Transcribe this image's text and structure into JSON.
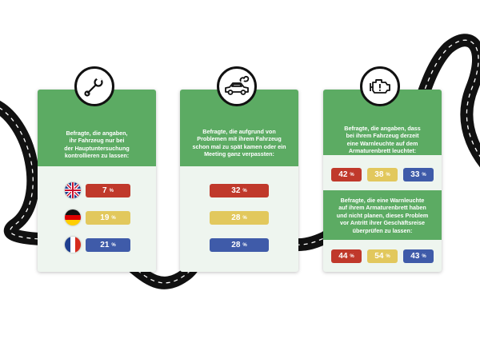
{
  "colors": {
    "green": "#5cab63",
    "red": "#c0392b",
    "yellow": "#e2c85d",
    "blue": "#3f5ba9",
    "road": "#111111"
  },
  "card1": {
    "icon": "wrench-icon",
    "text": "Befragte, die angaben,\nihr Fahrzeug nur bei\nder Hauptuntersuchung\nkontrollieren zu lassen:",
    "rows": [
      {
        "flag": "uk-flag-icon",
        "value": "7",
        "unit": "%"
      },
      {
        "flag": "germany-flag-icon",
        "value": "19",
        "unit": "%"
      },
      {
        "flag": "france-flag-icon",
        "value": "21",
        "unit": "%"
      }
    ]
  },
  "card2": {
    "icon": "car-smoke-icon",
    "text": "Befragte, die aufgrund von\nProblemen mit ihrem Fahrzeug\nschon mal zu spät kamen oder ein\nMeeting ganz verpassten:",
    "rows": [
      {
        "value": "32",
        "unit": "%"
      },
      {
        "value": "28",
        "unit": "%"
      },
      {
        "value": "28",
        "unit": "%"
      }
    ]
  },
  "card3": {
    "icon": "engine-warning-icon",
    "text1": "Befragte, die angaben, dass\nbei ihrem Fahrzeug derzeit\neine Warnleuchte auf dem\nArmaturenbrett leuchtet:",
    "row1": [
      {
        "value": "42",
        "unit": "%"
      },
      {
        "value": "38",
        "unit": "%"
      },
      {
        "value": "33",
        "unit": "%"
      }
    ],
    "text2": "Befragte, die eine Warnleuchte\nauf ihrem Armaturenbrett haben\nund nicht planen, dieses Problem\nvor Antritt ihrer Geschäftsreise\nüberprüfen zu lassen:",
    "row2": [
      {
        "value": "44",
        "unit": "%"
      },
      {
        "value": "54",
        "unit": "%"
      },
      {
        "value": "43",
        "unit": "%"
      }
    ]
  }
}
